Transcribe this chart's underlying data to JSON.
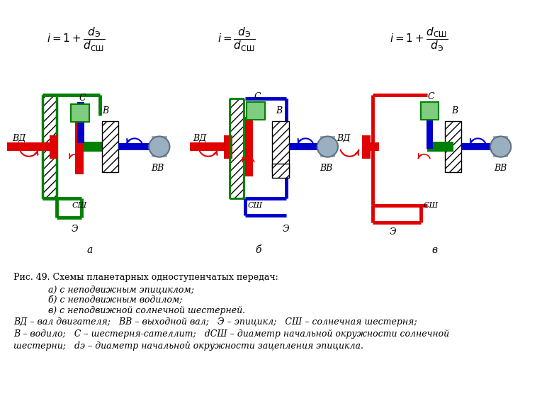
{
  "bg_color": "#ffffff",
  "hatch_color": "#000000",
  "red": "#e00000",
  "blue": "#0000cc",
  "green": "#008000",
  "light_green": "#80cc80",
  "gray": "#8090a0",
  "dark_gray": "#404040",
  "caption_line1": "Рис. 49. Схемы планетарных одноступенчатых передач:",
  "caption_line2": "                        а) с неподвижным эпициклом;",
  "caption_line3": "                        б) с неподвижным водилом;",
  "caption_line4": "                        в) с неподвижной солнечной шестерней.",
  "caption_line5": "ВД – вал двигателя;   ВВ – выходной вал;   Э – эпицикл;   СШ – солнечная шестерня;",
  "caption_line6": "В – водило;   С – шестерня-сателлит;   d СШ – диаметр начальной окружности солнечной",
  "caption_line7": "шестерни;   d э – диаметр начальной окружности зацепления эпицикла.",
  "label_a": "а",
  "label_b": "б",
  "label_v": "в"
}
